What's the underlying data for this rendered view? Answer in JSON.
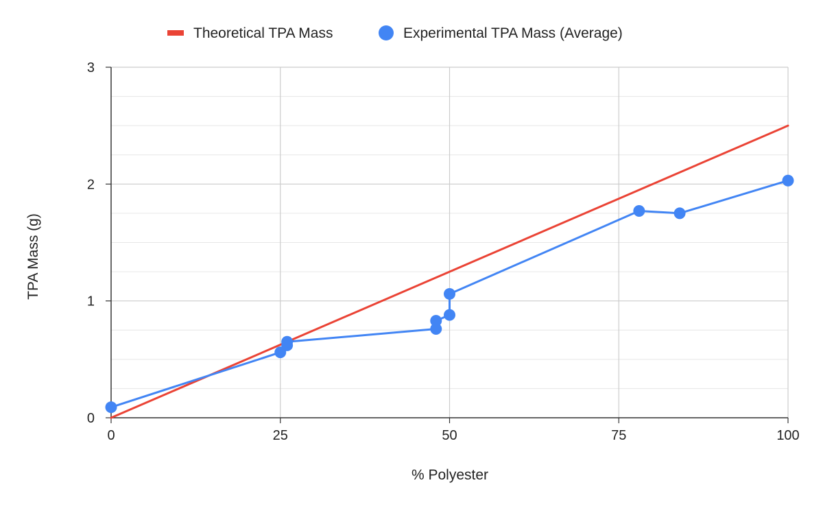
{
  "chart_data": {
    "type": "line",
    "title": "",
    "xlabel": "% Polyester",
    "ylabel": "TPA  Mass (g)",
    "xlim": [
      0,
      100
    ],
    "ylim": [
      0,
      3
    ],
    "x_ticks": [
      0,
      25,
      50,
      75,
      100
    ],
    "y_ticks": [
      0,
      1,
      2,
      3
    ],
    "grid": true,
    "legend_position": "top",
    "series": [
      {
        "name": "Theoretical TPA Mass",
        "color": "#EA4335",
        "style": "line",
        "points": [
          [
            0,
            0
          ],
          [
            25,
            0.625
          ],
          [
            48,
            1.2
          ],
          [
            50,
            1.25
          ],
          [
            100,
            2.5
          ]
        ]
      },
      {
        "name": "Experimental TPA Mass (Average)",
        "color": "#4285F4",
        "style": "line-markers",
        "points": [
          [
            0,
            0.09
          ],
          [
            25,
            0.56
          ],
          [
            26,
            0.62
          ],
          [
            26,
            0.65
          ],
          [
            48,
            0.76
          ],
          [
            48,
            0.83
          ],
          [
            50,
            0.88
          ],
          [
            50,
            1.06
          ],
          [
            78,
            1.77
          ],
          [
            84,
            1.75
          ],
          [
            100,
            2.03
          ]
        ]
      }
    ]
  }
}
